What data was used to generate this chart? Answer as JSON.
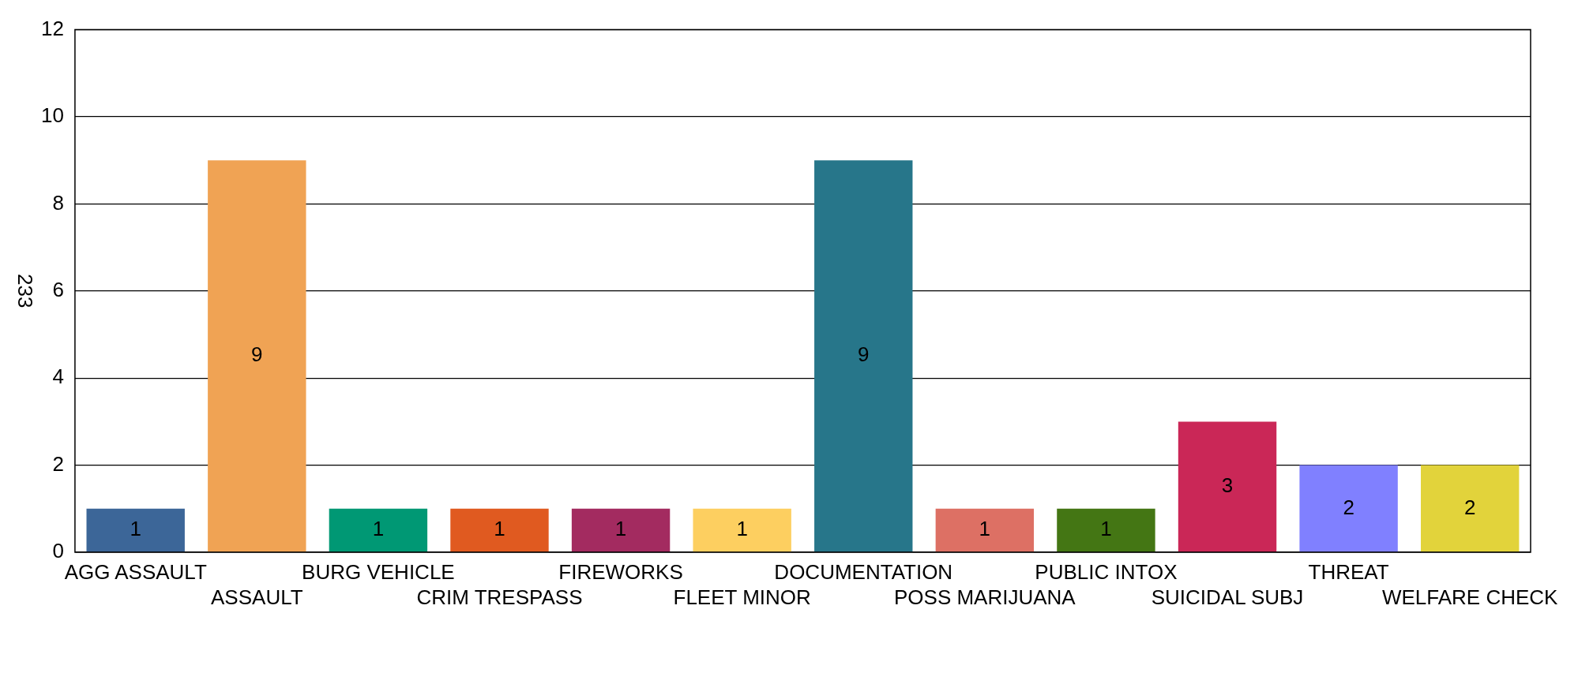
{
  "chart_data": {
    "type": "bar",
    "ylabel": "233",
    "categories": [
      "AGG ASSAULT",
      "ASSAULT",
      "BURG VEHICLE",
      "CRIM TRESPASS",
      "FIREWORKS",
      "FLEET MINOR",
      "DOCUMENTATION",
      "POSS MARIJUANA",
      "PUBLIC INTOX",
      "SUICIDAL SUBJ",
      "THREAT",
      "WELFARE CHECK"
    ],
    "values": [
      1,
      9,
      1,
      1,
      1,
      1,
      9,
      1,
      1,
      3,
      2,
      2
    ],
    "colors": [
      "#3c6698",
      "#f0a354",
      "#009874",
      "#e05a20",
      "#a32b60",
      "#fdcf60",
      "#27768a",
      "#dd7064",
      "#447614",
      "#ca2757",
      "#8080ff",
      "#e2d33b"
    ],
    "ylim": [
      0,
      12
    ],
    "yticks": [
      0,
      2,
      4,
      6,
      8,
      10,
      12
    ],
    "grid": "y",
    "data_labels": true
  }
}
